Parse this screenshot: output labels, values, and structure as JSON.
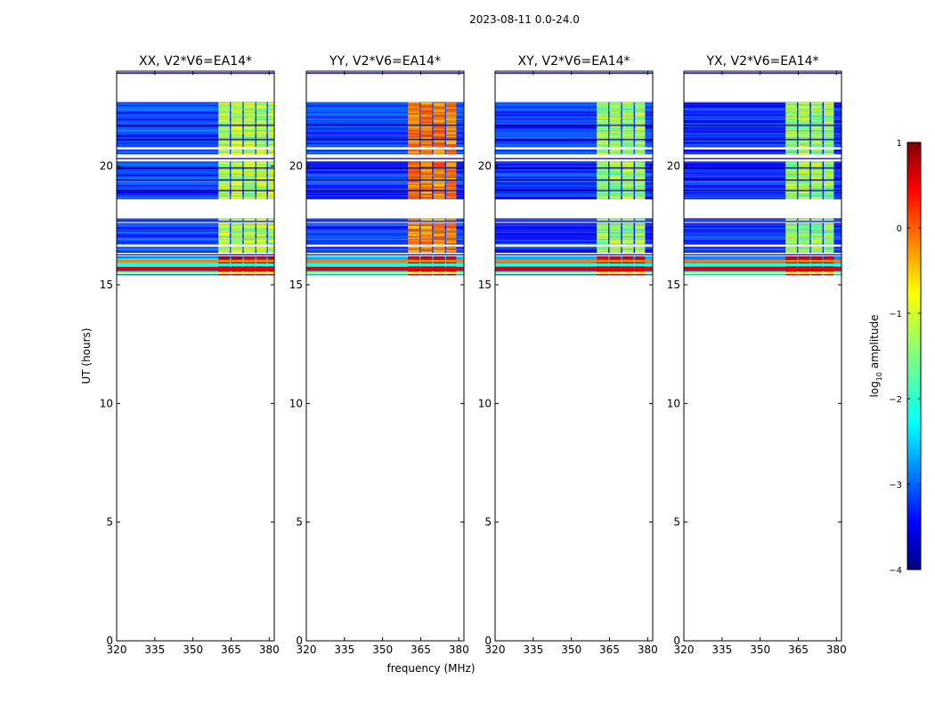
{
  "figure": {
    "suptitle": "2023-08-11 0.0-24.0",
    "xlabel": "frequency (MHz)",
    "ylabel": "UT (hours)"
  },
  "colorbar": {
    "label_main": "log",
    "label_sub": "10",
    "label_tail": " amplitude",
    "range": [
      -4,
      1
    ],
    "ticks": [
      "1",
      "0",
      "−1",
      "−2",
      "−3",
      "−4"
    ],
    "tick_values": [
      1,
      0,
      -1,
      -2,
      -3,
      -4
    ],
    "colormap": "jet"
  },
  "chart_data": [
    {
      "type": "heatmap",
      "title": "XX, V2*V6=EA14*",
      "xlim": [
        320,
        382
      ],
      "ylim": [
        0,
        24
      ],
      "xticks": [
        "320",
        "335",
        "350",
        "365",
        "380"
      ],
      "xtick_values": [
        320,
        335,
        350,
        365,
        380
      ],
      "yticks": [
        "0",
        "5",
        "10",
        "15",
        "20"
      ],
      "ytick_values": [
        0,
        5,
        10,
        15,
        20
      ],
      "channel_bands": [
        [
          360,
          364.5
        ],
        [
          365,
          369.5
        ],
        [
          370,
          374.5
        ],
        [
          375,
          379
        ],
        [
          379.5,
          382
        ]
      ],
      "band_level": [
        -1.6,
        -0.8
      ],
      "background_level": -3.1
    },
    {
      "type": "heatmap",
      "title": "YY, V2*V6=EA14*",
      "xlim": [
        320,
        382
      ],
      "ylim": [
        0,
        24
      ],
      "xticks": [
        "320",
        "335",
        "350",
        "365",
        "380"
      ],
      "xtick_values": [
        320,
        335,
        350,
        365,
        380
      ],
      "yticks": [
        "0",
        "5",
        "10",
        "15",
        "20"
      ],
      "ytick_values": [
        0,
        5,
        10,
        15,
        20
      ],
      "channel_bands": [
        [
          360,
          364.5
        ],
        [
          365,
          369.5
        ],
        [
          370,
          374.5
        ],
        [
          375,
          379
        ]
      ],
      "band_level": [
        -0.6,
        0.1
      ],
      "background_level": -3.1
    },
    {
      "type": "heatmap",
      "title": "XY, V2*V6=EA14*",
      "xlim": [
        320,
        382
      ],
      "ylim": [
        0,
        24
      ],
      "xticks": [
        "320",
        "335",
        "350",
        "365",
        "380"
      ],
      "xtick_values": [
        320,
        335,
        350,
        365,
        380
      ],
      "yticks": [
        "0",
        "5",
        "10",
        "15",
        "20"
      ],
      "ytick_values": [
        0,
        5,
        10,
        15,
        20
      ],
      "channel_bands": [
        [
          360,
          364.5
        ],
        [
          365,
          369.5
        ],
        [
          370,
          374.5
        ],
        [
          375,
          379
        ]
      ],
      "band_level": [
        -1.7,
        -1.0
      ],
      "background_level": -3.2
    },
    {
      "type": "heatmap",
      "title": "YX, V2*V6=EA14*",
      "xlim": [
        320,
        382
      ],
      "ylim": [
        0,
        24
      ],
      "xticks": [
        "320",
        "335",
        "350",
        "365",
        "380"
      ],
      "xtick_values": [
        320,
        335,
        350,
        365,
        380
      ],
      "yticks": [
        "0",
        "5",
        "10",
        "15",
        "20"
      ],
      "ytick_values": [
        0,
        5,
        10,
        15,
        20
      ],
      "channel_bands": [
        [
          360,
          364.5
        ],
        [
          365,
          369.5
        ],
        [
          370,
          374.5
        ],
        [
          375,
          379
        ]
      ],
      "band_level": [
        -1.7,
        -1.0
      ],
      "background_level": -3.2
    }
  ]
}
